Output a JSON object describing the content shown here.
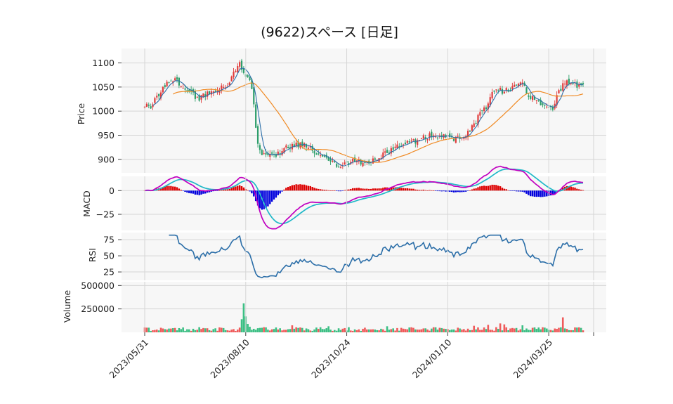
{
  "chart_data": {
    "type": "candlestick",
    "title": "(9622)スペース [日足]",
    "x_tick_labels": [
      "2023/05/31",
      "2023/08/10",
      "2023/10/24",
      "2024/01/10",
      "2024/03/25"
    ],
    "colors": {
      "up": "#e03b3b",
      "down": "#2e9e6b",
      "ma_short": "#2b6ea8",
      "ma_long": "#f08a24",
      "macd": "#c000c0",
      "signal": "#20b8c8",
      "hist_pos": "#dd0000",
      "hist_neg": "#0000dd",
      "rsi": "#2b6ea8"
    },
    "panels": [
      {
        "name": "price",
        "ylabel": "Price",
        "ylim": [
          872,
          1130
        ],
        "yticks": [
          900,
          950,
          1000,
          1050,
          1100
        ]
      },
      {
        "name": "macd",
        "ylabel": "MACD",
        "ylim": [
          -42,
          15
        ],
        "yticks": [
          0,
          -25
        ],
        "ytick_labels": [
          "0",
          "−25"
        ]
      },
      {
        "name": "rsi",
        "ylabel": "RSI",
        "ylim": [
          12,
          86
        ],
        "yticks": [
          25,
          50,
          75
        ]
      },
      {
        "name": "volume",
        "ylabel": "Volume",
        "ylim": [
          0,
          540000
        ],
        "yticks": [
          250000,
          500000
        ]
      }
    ],
    "price_anchors": [
      [
        0,
        1015
      ],
      [
        3,
        1010
      ],
      [
        6,
        1030
      ],
      [
        10,
        1055
      ],
      [
        15,
        1065
      ],
      [
        18,
        1055
      ],
      [
        22,
        1045
      ],
      [
        26,
        1025
      ],
      [
        30,
        1035
      ],
      [
        34,
        1040
      ],
      [
        38,
        1050
      ],
      [
        42,
        1060
      ],
      [
        45,
        1085
      ],
      [
        47,
        1100
      ],
      [
        50,
        1075
      ],
      [
        52,
        1060
      ],
      [
        53,
        1050
      ],
      [
        54,
        1010
      ],
      [
        55,
        970
      ],
      [
        56,
        935
      ],
      [
        58,
        910
      ],
      [
        62,
        908
      ],
      [
        66,
        912
      ],
      [
        70,
        925
      ],
      [
        74,
        930
      ],
      [
        78,
        930
      ],
      [
        82,
        925
      ],
      [
        86,
        905
      ],
      [
        90,
        900
      ],
      [
        95,
        890
      ],
      [
        100,
        888
      ],
      [
        104,
        900
      ],
      [
        108,
        893
      ],
      [
        112,
        898
      ],
      [
        116,
        905
      ],
      [
        120,
        913
      ],
      [
        124,
        925
      ],
      [
        128,
        930
      ],
      [
        131,
        940
      ],
      [
        134,
        935
      ],
      [
        138,
        945
      ],
      [
        142,
        950
      ],
      [
        146,
        948
      ],
      [
        150,
        945
      ],
      [
        154,
        943
      ],
      [
        158,
        948
      ],
      [
        162,
        965
      ],
      [
        166,
        995
      ],
      [
        169,
        1010
      ],
      [
        172,
        1035
      ],
      [
        175,
        1045
      ],
      [
        178,
        1040
      ],
      [
        182,
        1050
      ],
      [
        186,
        1065
      ],
      [
        188,
        1050
      ],
      [
        190,
        1030
      ],
      [
        194,
        1020
      ],
      [
        198,
        1015
      ],
      [
        202,
        1005
      ],
      [
        205,
        1040
      ],
      [
        208,
        1060
      ],
      [
        212,
        1062
      ],
      [
        215,
        1050
      ],
      [
        217,
        1058
      ]
    ],
    "volume_spikes": [
      [
        48,
        140000
      ],
      [
        49,
        310000
      ],
      [
        50,
        170000
      ],
      [
        51,
        90000
      ],
      [
        52,
        60000
      ],
      [
        73,
        75000
      ],
      [
        91,
        65000
      ],
      [
        120,
        65000
      ],
      [
        163,
        70000
      ],
      [
        170,
        80000
      ],
      [
        176,
        95000
      ],
      [
        178,
        85000
      ],
      [
        187,
        75000
      ],
      [
        207,
        160000
      ]
    ],
    "n_days": 218
  }
}
